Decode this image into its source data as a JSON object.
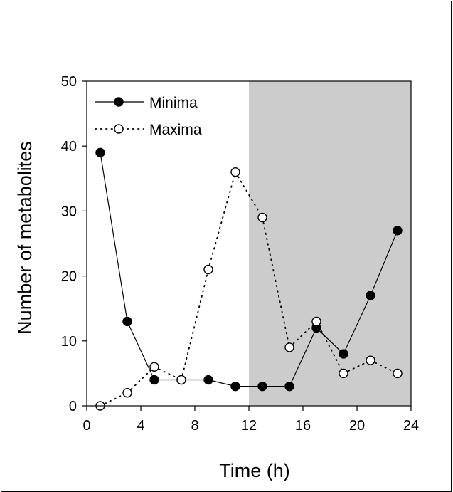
{
  "chart_data": {
    "type": "line",
    "title": "",
    "xlabel": "Time (h)",
    "ylabel": "Number of metabolites",
    "xlim": [
      0,
      24
    ],
    "ylim": [
      0,
      50
    ],
    "xticks": [
      "0",
      "4",
      "8",
      "12",
      "16",
      "20",
      "24"
    ],
    "yticks": [
      "0",
      "10",
      "20",
      "30",
      "40",
      "50"
    ],
    "grid": false,
    "legend_position": "top-left",
    "shaded_region": {
      "x_start": 12,
      "x_end": 24,
      "color": "#cccccc"
    },
    "series": [
      {
        "name": "Minima",
        "marker": "filled-circle",
        "line_style": "solid",
        "x": [
          1,
          3,
          5,
          7,
          9,
          11,
          13,
          15,
          17,
          19,
          21,
          23
        ],
        "y": [
          39,
          13,
          4,
          4,
          4,
          3,
          3,
          3,
          12,
          8,
          17,
          27
        ]
      },
      {
        "name": "Maxima",
        "marker": "open-circle",
        "line_style": "dotted",
        "x": [
          1,
          3,
          5,
          7,
          9,
          11,
          13,
          15,
          17,
          19,
          21,
          23
        ],
        "y": [
          0,
          2,
          6,
          4,
          21,
          36,
          29,
          9,
          13,
          5,
          7,
          5
        ]
      }
    ]
  }
}
